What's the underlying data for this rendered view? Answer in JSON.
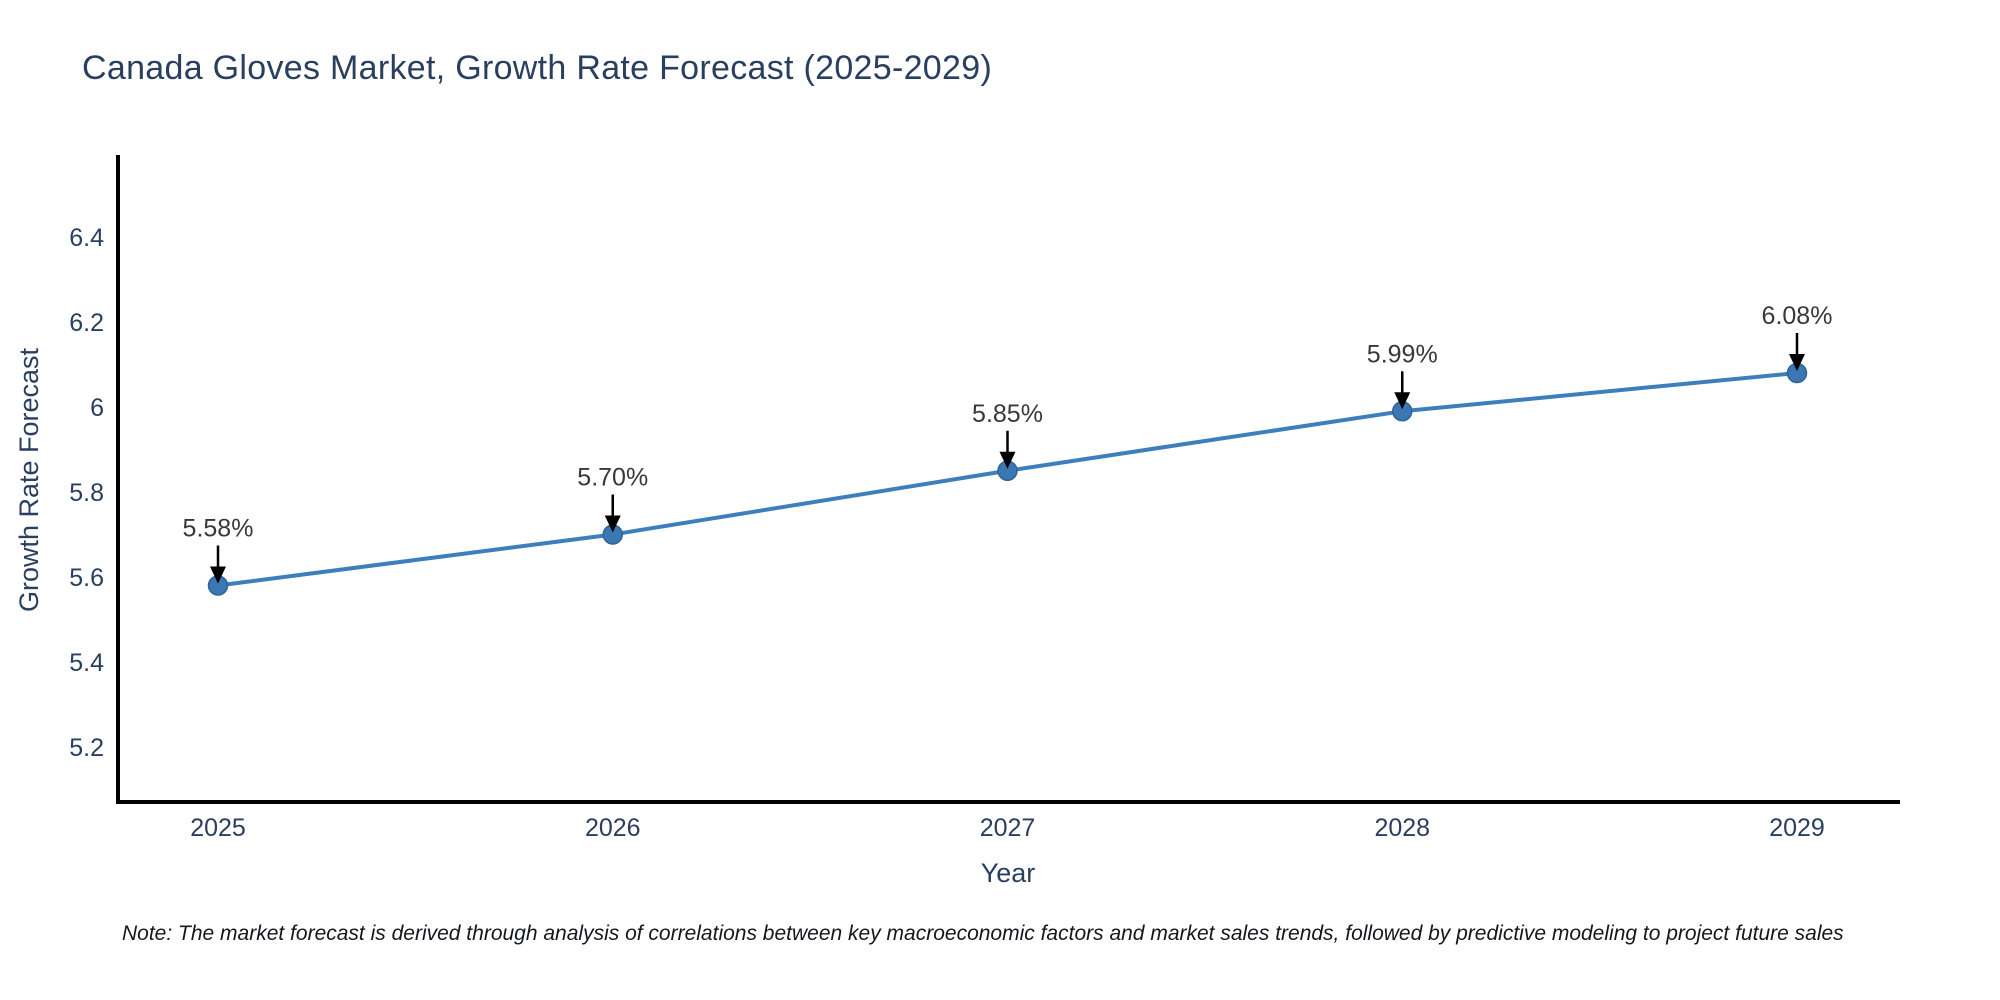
{
  "title": {
    "text": "Canada Gloves Market, Growth Rate Forecast (2025-2029)",
    "color": "#2a3f5f"
  },
  "note": {
    "text": "Note: The market forecast is derived through analysis of correlations between key macroeconomic factors and market sales trends, followed by predictive modeling to project future sales"
  },
  "chart_data": {
    "type": "line",
    "title": "Canada Gloves Market, Growth Rate Forecast (2025-2029)",
    "xlabel": "Year",
    "ylabel": "Growth Rate Forecast",
    "x": [
      2025,
      2026,
      2027,
      2028,
      2029
    ],
    "values": [
      5.58,
      5.7,
      5.85,
      5.99,
      6.08
    ],
    "point_labels": [
      "5.58%",
      "5.70%",
      "5.85%",
      "5.99%",
      "6.08%"
    ],
    "x_tick_labels": [
      "2025",
      "2026",
      "2027",
      "2028",
      "2029"
    ],
    "y_ticks": [
      5.2,
      5.4,
      5.6,
      5.8,
      6,
      6.2,
      6.4
    ],
    "y_tick_labels": [
      "5.2",
      "5.4",
      "5.6",
      "5.8",
      "6",
      "6.2",
      "6.4"
    ],
    "ylim": [
      5.07,
      6.59
    ],
    "grid": false,
    "legend": false,
    "annotations": "value label with black down-arrow above each point",
    "line_color": "#3d7ebc",
    "marker_color": "#3a77b3",
    "marker_edge_color": "#2f6496",
    "axis_color": "#000000",
    "tick_color": "#2a3f5f",
    "annotation_color": "#37383c",
    "arrow_color": "#000000"
  }
}
